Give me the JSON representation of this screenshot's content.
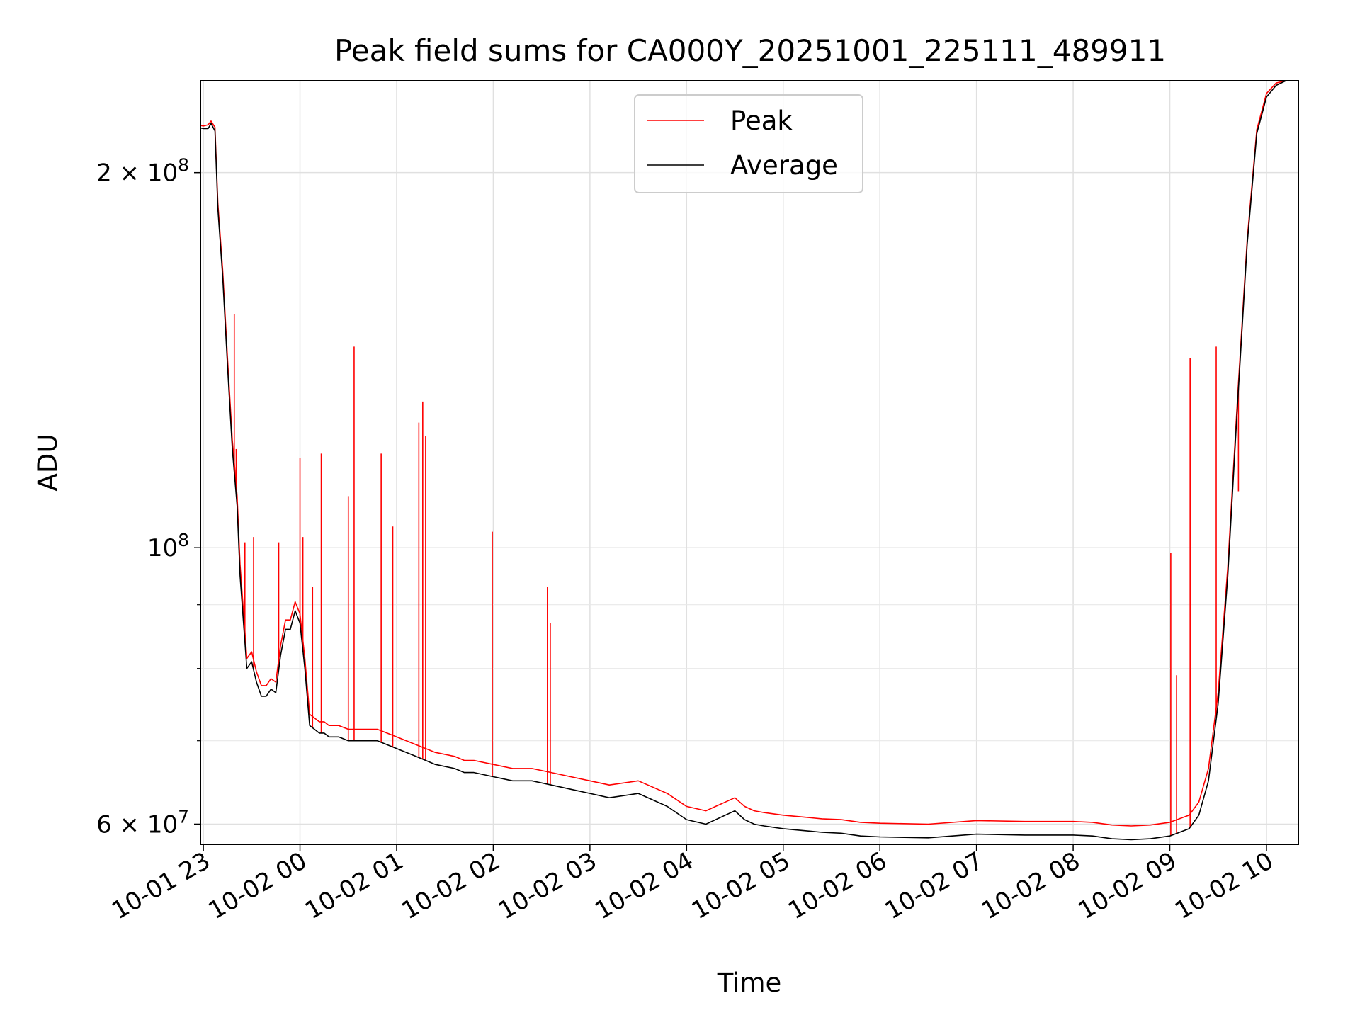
{
  "chart_data": {
    "type": "line",
    "title": "Peak field sums for CA000Y_20251001_225111_489911",
    "xlabel": "Time",
    "ylabel": "ADU",
    "y_scale": "log",
    "xlim_hours": [
      -0.03,
      11.33
    ],
    "ylim": [
      57800000,
      237000000
    ],
    "grid": true,
    "legend_location": "upper center",
    "x_ticks": [
      {
        "label": "10-01 23",
        "hour": 0
      },
      {
        "label": "10-02 00",
        "hour": 1
      },
      {
        "label": "10-02 01",
        "hour": 2
      },
      {
        "label": "10-02 02",
        "hour": 3
      },
      {
        "label": "10-02 03",
        "hour": 4
      },
      {
        "label": "10-02 04",
        "hour": 5
      },
      {
        "label": "10-02 05",
        "hour": 6
      },
      {
        "label": "10-02 06",
        "hour": 7
      },
      {
        "label": "10-02 07",
        "hour": 8
      },
      {
        "label": "10-02 08",
        "hour": 9
      },
      {
        "label": "10-02 09",
        "hour": 10
      },
      {
        "label": "10-02 10",
        "hour": 11
      }
    ],
    "y_ticks": [
      {
        "value": 60000000,
        "base": "6 × 10",
        "exp": "7"
      },
      {
        "value": 100000000,
        "base": "10",
        "exp": "8"
      },
      {
        "value": 200000000,
        "base": "2 × 10",
        "exp": "8"
      }
    ],
    "y_minor_ticks": [
      70000000,
      80000000,
      90000000
    ],
    "series": [
      {
        "name": "Average",
        "color": "#000000",
        "x_hours": [
          -0.14,
          0.0,
          0.05,
          0.08,
          0.12,
          0.15,
          0.2,
          0.25,
          0.3,
          0.35,
          0.38,
          0.45,
          0.5,
          0.55,
          0.6,
          0.65,
          0.7,
          0.75,
          0.8,
          0.85,
          0.9,
          0.95,
          1.0,
          1.05,
          1.1,
          1.15,
          1.2,
          1.25,
          1.3,
          1.4,
          1.5,
          1.6,
          1.8,
          2.0,
          2.2,
          2.4,
          2.6,
          2.7,
          2.8,
          3.0,
          3.2,
          3.4,
          3.6,
          3.8,
          4.0,
          4.2,
          4.5,
          4.8,
          5.0,
          5.2,
          5.4,
          5.5,
          5.6,
          5.7,
          5.8,
          6.0,
          6.2,
          6.4,
          6.6,
          6.8,
          7.0,
          7.5,
          8.0,
          8.5,
          9.0,
          9.2,
          9.4,
          9.6,
          9.8,
          10.0,
          10.2,
          10.3,
          10.4,
          10.5,
          10.6,
          10.7,
          10.8,
          10.9,
          11.0,
          11.1,
          11.2,
          11.3
        ],
        "values": [
          218000000,
          217000000,
          217000000,
          219000000,
          216000000,
          187000000,
          165000000,
          140000000,
          120000000,
          108000000,
          95000000,
          80000000,
          81000000,
          78000000,
          76000000,
          76000000,
          77000000,
          76500000,
          82000000,
          86000000,
          86000000,
          89000000,
          87000000,
          80000000,
          72000000,
          71500000,
          71000000,
          71000000,
          70500000,
          70500000,
          70000000,
          70000000,
          70000000,
          69000000,
          68000000,
          67000000,
          66500000,
          66000000,
          66000000,
          65500000,
          65000000,
          65000000,
          64500000,
          64000000,
          63500000,
          63000000,
          63500000,
          62000000,
          60500000,
          60000000,
          61000000,
          61500000,
          60500000,
          60000000,
          59800000,
          59500000,
          59300000,
          59100000,
          59000000,
          58700000,
          58600000,
          58500000,
          58900000,
          58800000,
          58800000,
          58700000,
          58400000,
          58300000,
          58400000,
          58700000,
          59500000,
          61000000,
          65000000,
          75000000,
          95000000,
          130000000,
          175000000,
          215000000,
          230000000,
          235000000,
          237000000,
          237000000
        ]
      },
      {
        "name": "Peak",
        "color": "#ff0000",
        "x_hours": [
          -0.14,
          0.0,
          0.05,
          0.08,
          0.12,
          0.15,
          0.2,
          0.25,
          0.3,
          0.35,
          0.38,
          0.45,
          0.5,
          0.55,
          0.6,
          0.65,
          0.7,
          0.75,
          0.8,
          0.85,
          0.9,
          0.95,
          1.0,
          1.05,
          1.1,
          1.15,
          1.2,
          1.25,
          1.3,
          1.4,
          1.5,
          1.6,
          1.8,
          2.0,
          2.2,
          2.4,
          2.6,
          2.7,
          2.8,
          3.0,
          3.2,
          3.4,
          3.6,
          3.8,
          4.0,
          4.2,
          4.5,
          4.8,
          5.0,
          5.2,
          5.4,
          5.5,
          5.6,
          5.7,
          5.8,
          6.0,
          6.2,
          6.4,
          6.6,
          6.8,
          7.0,
          7.5,
          8.0,
          8.5,
          9.0,
          9.2,
          9.4,
          9.6,
          9.8,
          10.0,
          10.2,
          10.3,
          10.4,
          10.5,
          10.6,
          10.7,
          10.8,
          10.9,
          11.0,
          11.1,
          11.2,
          11.3
        ],
        "values": [
          219000000,
          218000000,
          218500000,
          220000000,
          217500000,
          189000000,
          167000000,
          142000000,
          122000000,
          110000000,
          97000000,
          81500000,
          82500000,
          79500000,
          77500000,
          77500000,
          78500000,
          78000000,
          83500000,
          87500000,
          87500000,
          90500000,
          88500000,
          81500000,
          73500000,
          73000000,
          72500000,
          72500000,
          72000000,
          72000000,
          71500000,
          71500000,
          71500000,
          70500000,
          69500000,
          68500000,
          68000000,
          67500000,
          67500000,
          67000000,
          66500000,
          66500000,
          66000000,
          65500000,
          65000000,
          64500000,
          65000000,
          63500000,
          62000000,
          61500000,
          62500000,
          63000000,
          62000000,
          61500000,
          61300000,
          61000000,
          60800000,
          60600000,
          60500000,
          60200000,
          60100000,
          60000000,
          60400000,
          60300000,
          60300000,
          60200000,
          59900000,
          59800000,
          59900000,
          60200000,
          61000000,
          62500000,
          66500000,
          76500000,
          96500000,
          131500000,
          176500000,
          216500000,
          231500000,
          236000000,
          237000000,
          237000000
        ]
      }
    ],
    "peak_spikes": [
      {
        "hour": 0.32,
        "value": 154000000
      },
      {
        "hour": 0.34,
        "value": 120000000
      },
      {
        "hour": 0.43,
        "value": 101000000
      },
      {
        "hour": 0.52,
        "value": 102000000
      },
      {
        "hour": 0.78,
        "value": 101000000
      },
      {
        "hour": 1.0,
        "value": 118000000
      },
      {
        "hour": 1.03,
        "value": 102000000
      },
      {
        "hour": 1.13,
        "value": 93000000
      },
      {
        "hour": 1.22,
        "value": 119000000
      },
      {
        "hour": 1.5,
        "value": 110000000
      },
      {
        "hour": 1.56,
        "value": 145000000
      },
      {
        "hour": 1.84,
        "value": 119000000
      },
      {
        "hour": 1.96,
        "value": 104000000
      },
      {
        "hour": 2.23,
        "value": 126000000
      },
      {
        "hour": 2.27,
        "value": 131000000
      },
      {
        "hour": 2.3,
        "value": 123000000
      },
      {
        "hour": 2.99,
        "value": 103000000
      },
      {
        "hour": 3.56,
        "value": 93000000
      },
      {
        "hour": 3.59,
        "value": 87000000
      },
      {
        "hour": 10.01,
        "value": 99000000
      },
      {
        "hour": 10.07,
        "value": 79000000
      },
      {
        "hour": 10.21,
        "value": 142000000
      },
      {
        "hour": 10.48,
        "value": 145000000
      },
      {
        "hour": 10.71,
        "value": 111000000
      }
    ],
    "legend": [
      {
        "label": "Peak",
        "color": "#ff0000"
      },
      {
        "label": "Average",
        "color": "#000000"
      }
    ]
  }
}
